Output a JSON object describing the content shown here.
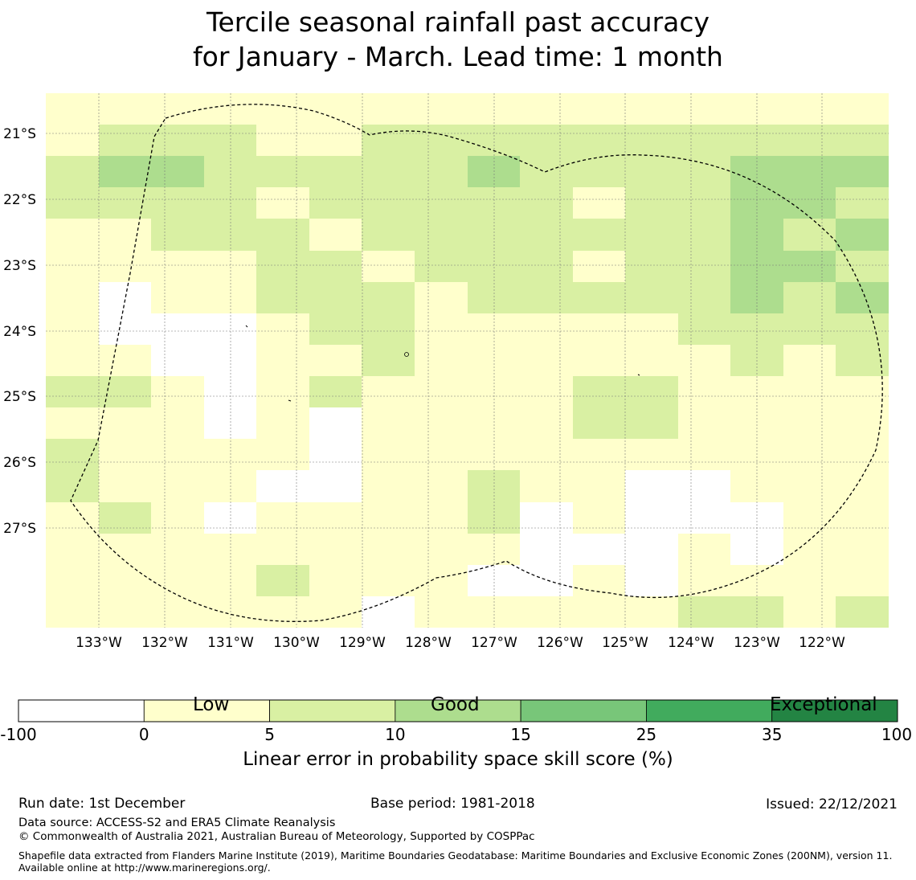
{
  "title": {
    "line1": "Tercile seasonal rainfall past accuracy",
    "line2": "for January - March. Lead time: 1 month"
  },
  "map": {
    "lat_ticks": [
      "21°S",
      "22°S",
      "23°S",
      "24°S",
      "25°S",
      "26°S",
      "27°S"
    ],
    "lon_ticks": [
      "133°W",
      "132°W",
      "131°W",
      "130°W",
      "129°W",
      "128°W",
      "127°W",
      "126°W",
      "125°W",
      "124°W",
      "123°W",
      "122°W"
    ],
    "grid_legend": {
      "0": "white",
      "1": "#ffffcc",
      "2": "#d9f0a3",
      "3": "#addd8e"
    },
    "grid": [
      [
        1,
        1,
        1,
        1,
        1,
        1,
        1,
        1,
        1,
        1,
        1,
        1,
        1,
        1,
        1,
        1
      ],
      [
        1,
        2,
        2,
        2,
        1,
        1,
        2,
        2,
        2,
        2,
        2,
        2,
        2,
        2,
        2,
        2
      ],
      [
        2,
        3,
        3,
        2,
        2,
        2,
        2,
        2,
        3,
        2,
        2,
        2,
        2,
        3,
        3,
        3
      ],
      [
        2,
        2,
        2,
        2,
        1,
        2,
        2,
        2,
        2,
        2,
        1,
        2,
        2,
        3,
        3,
        2
      ],
      [
        1,
        1,
        2,
        2,
        2,
        1,
        2,
        2,
        2,
        2,
        2,
        2,
        2,
        3,
        2,
        3
      ],
      [
        1,
        1,
        1,
        1,
        2,
        2,
        1,
        2,
        2,
        2,
        1,
        2,
        2,
        3,
        3,
        2
      ],
      [
        1,
        0,
        1,
        1,
        2,
        2,
        2,
        1,
        2,
        2,
        2,
        2,
        2,
        3,
        2,
        3
      ],
      [
        1,
        0,
        0,
        0,
        1,
        2,
        2,
        1,
        1,
        1,
        1,
        1,
        2,
        2,
        2,
        2
      ],
      [
        1,
        1,
        0,
        0,
        1,
        1,
        2,
        1,
        1,
        1,
        1,
        1,
        1,
        2,
        1,
        2
      ],
      [
        2,
        2,
        1,
        0,
        1,
        2,
        1,
        1,
        1,
        1,
        2,
        2,
        1,
        1,
        1,
        1
      ],
      [
        1,
        1,
        1,
        0,
        1,
        0,
        1,
        1,
        1,
        1,
        2,
        2,
        1,
        1,
        1,
        1
      ],
      [
        2,
        1,
        1,
        1,
        1,
        0,
        1,
        1,
        1,
        1,
        1,
        1,
        1,
        1,
        1,
        1
      ],
      [
        2,
        1,
        1,
        1,
        0,
        0,
        1,
        1,
        2,
        1,
        1,
        0,
        0,
        1,
        1,
        1
      ],
      [
        1,
        2,
        1,
        0,
        1,
        1,
        1,
        1,
        2,
        0,
        1,
        0,
        0,
        0,
        1,
        1
      ],
      [
        1,
        1,
        1,
        1,
        1,
        1,
        1,
        1,
        1,
        0,
        0,
        0,
        1,
        0,
        1,
        1
      ],
      [
        1,
        1,
        1,
        1,
        2,
        1,
        1,
        1,
        0,
        0,
        1,
        0,
        1,
        1,
        1,
        1
      ],
      [
        1,
        1,
        1,
        1,
        1,
        1,
        0,
        1,
        1,
        1,
        1,
        1,
        2,
        2,
        1,
        2
      ]
    ]
  },
  "colorbar": {
    "section_low": "Low",
    "section_good": "Good",
    "section_exceptional": "Exceptional",
    "bins": [
      {
        "from": "-100",
        "to": "0",
        "color": "#ffffff"
      },
      {
        "from": "0",
        "to": "5",
        "color": "#ffffcc"
      },
      {
        "from": "5",
        "to": "10",
        "color": "#d9f0a3"
      },
      {
        "from": "10",
        "to": "15",
        "color": "#addd8e"
      },
      {
        "from": "15",
        "to": "25",
        "color": "#78c679"
      },
      {
        "from": "25",
        "to": "35",
        "color": "#41ab5d"
      },
      {
        "from": "35",
        "to": "100",
        "color": "#238443"
      }
    ],
    "ticks": [
      "-100",
      "0",
      "5",
      "10",
      "15",
      "25",
      "35",
      "100"
    ],
    "label": "Linear error in probability space skill score (%)"
  },
  "footer": {
    "run_date": "Run date: 1st December",
    "base_period": "Base period: 1981-2018",
    "issued": "Issued: 22/12/2021",
    "data_source": "Data source: ACCESS-S2 and ERA5 Climate Reanalysis",
    "copyright": "© Commonwealth of Australia 2021, Australian Bureau of Meteorology, Supported by COSPPac",
    "shapefile": "Shapefile data extracted from Flanders Marine Institute (2019), Maritime Boundaries Geodatabase: Maritime Boundaries and Exclusive Economic Zones (200NM), version 11. Available online at http://www.marineregions.org/."
  }
}
